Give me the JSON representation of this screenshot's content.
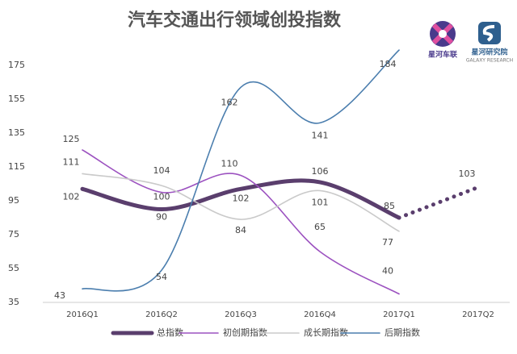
{
  "chart_data": {
    "type": "line",
    "title": "汽车交通出行领域创投指数",
    "categories": [
      "2016Q1",
      "2016Q2",
      "2016Q3",
      "2016Q4",
      "2017Q1",
      "2017Q2"
    ],
    "ylim": [
      35,
      185
    ],
    "yticks": [
      35,
      55,
      75,
      95,
      115,
      135,
      155,
      175
    ],
    "smooth": true,
    "series": [
      {
        "name": "总指数",
        "color": "#5a3e6d",
        "width": 5,
        "values": [
          102,
          90,
          102,
          106,
          85,
          103
        ],
        "projected": [
          false,
          false,
          false,
          false,
          false,
          true
        ]
      },
      {
        "name": "初创期指数",
        "color": "#9c52c0",
        "width": 1.6,
        "values": [
          125,
          100,
          110,
          65,
          40,
          null
        ]
      },
      {
        "name": "成长期指数",
        "color": "#cacaca",
        "width": 1.6,
        "values": [
          111,
          104,
          84,
          101,
          77,
          null
        ]
      },
      {
        "name": "后期指数",
        "color": "#4b7eae",
        "width": 1.6,
        "values": [
          43,
          54,
          162,
          141,
          184,
          null
        ]
      }
    ],
    "logos": [
      "星河车联",
      "星河研究院",
      "GALAXY RESEARCH"
    ]
  }
}
